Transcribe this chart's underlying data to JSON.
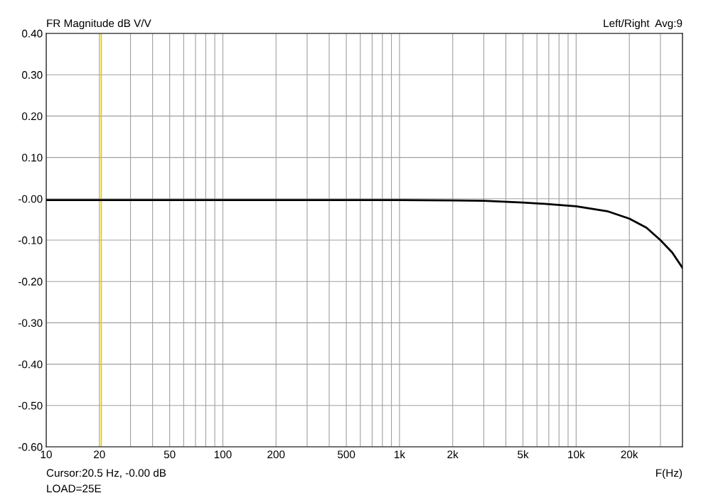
{
  "chart_data": {
    "type": "line",
    "title": "FR Magnitude dB V/V",
    "xlabel": "F(Hz)",
    "annotations": [
      "Left/Right  Avg:9",
      "Cursor:20.5 Hz, -0.00 dB",
      "LOAD=25E"
    ],
    "x": [
      10,
      100,
      1000,
      2000,
      3000,
      5000,
      7000,
      10000,
      15000,
      20000,
      25000,
      30000,
      35000,
      40000
    ],
    "series": [
      {
        "color": "#000000",
        "values": [
          -0.003,
          -0.003,
          -0.003,
          -0.004,
          -0.005,
          -0.009,
          -0.013,
          -0.018,
          -0.03,
          -0.048,
          -0.07,
          -0.1,
          -0.13,
          -0.167
        ]
      }
    ],
    "log": "x",
    "xlim": [
      10,
      40000
    ],
    "ylim": [
      -0.6,
      0.4
    ],
    "xticks": [
      10,
      20,
      {
        "value": 30,
        "label": null
      },
      {
        "value": 40,
        "label": null
      },
      50,
      {
        "value": 60,
        "label": null
      },
      {
        "value": 70,
        "label": null
      },
      {
        "value": 80,
        "label": null
      },
      {
        "value": 90,
        "label": null
      },
      100,
      200,
      {
        "value": 300,
        "label": null
      },
      {
        "value": 400,
        "label": null
      },
      500,
      {
        "value": 600,
        "label": null
      },
      {
        "value": 700,
        "label": null
      },
      {
        "value": 800,
        "label": null
      },
      {
        "value": 900,
        "label": null
      },
      {
        "value": 1000,
        "label": "1k"
      },
      {
        "value": 2000,
        "label": "2k"
      },
      {
        "value": 3000,
        "label": null
      },
      {
        "value": 4000,
        "label": null
      },
      {
        "value": 5000,
        "label": "5k"
      },
      {
        "value": 6000,
        "label": null
      },
      {
        "value": 7000,
        "label": null
      },
      {
        "value": 8000,
        "label": null
      },
      {
        "value": 9000,
        "label": null
      },
      {
        "value": 10000,
        "label": "10k"
      },
      {
        "value": 20000,
        "label": "20k"
      },
      {
        "value": 30000,
        "label": null
      },
      {
        "value": 40000,
        "label": null
      }
    ],
    "yticks": [
      {
        "value": -0.6,
        "label": "-0.60"
      },
      {
        "value": -0.5,
        "label": "-0.50"
      },
      {
        "value": -0.4,
        "label": "-0.40"
      },
      {
        "value": -0.3,
        "label": "-0.30"
      },
      {
        "value": -0.2,
        "label": "-0.20"
      },
      {
        "value": -0.1,
        "label": "-0.10"
      },
      {
        "value": 0,
        "label": "-0.00"
      },
      {
        "value": 0.1,
        "label": "0.10"
      },
      {
        "value": 0.2,
        "label": "0.20"
      },
      {
        "value": 0.3,
        "label": "0.30"
      },
      {
        "value": 0.4,
        "label": "0.40"
      }
    ],
    "ref_lines": [
      {
        "axis": "x",
        "value": 20.5,
        "color": "#e8c800"
      }
    ],
    "grid": true,
    "legend": false
  }
}
